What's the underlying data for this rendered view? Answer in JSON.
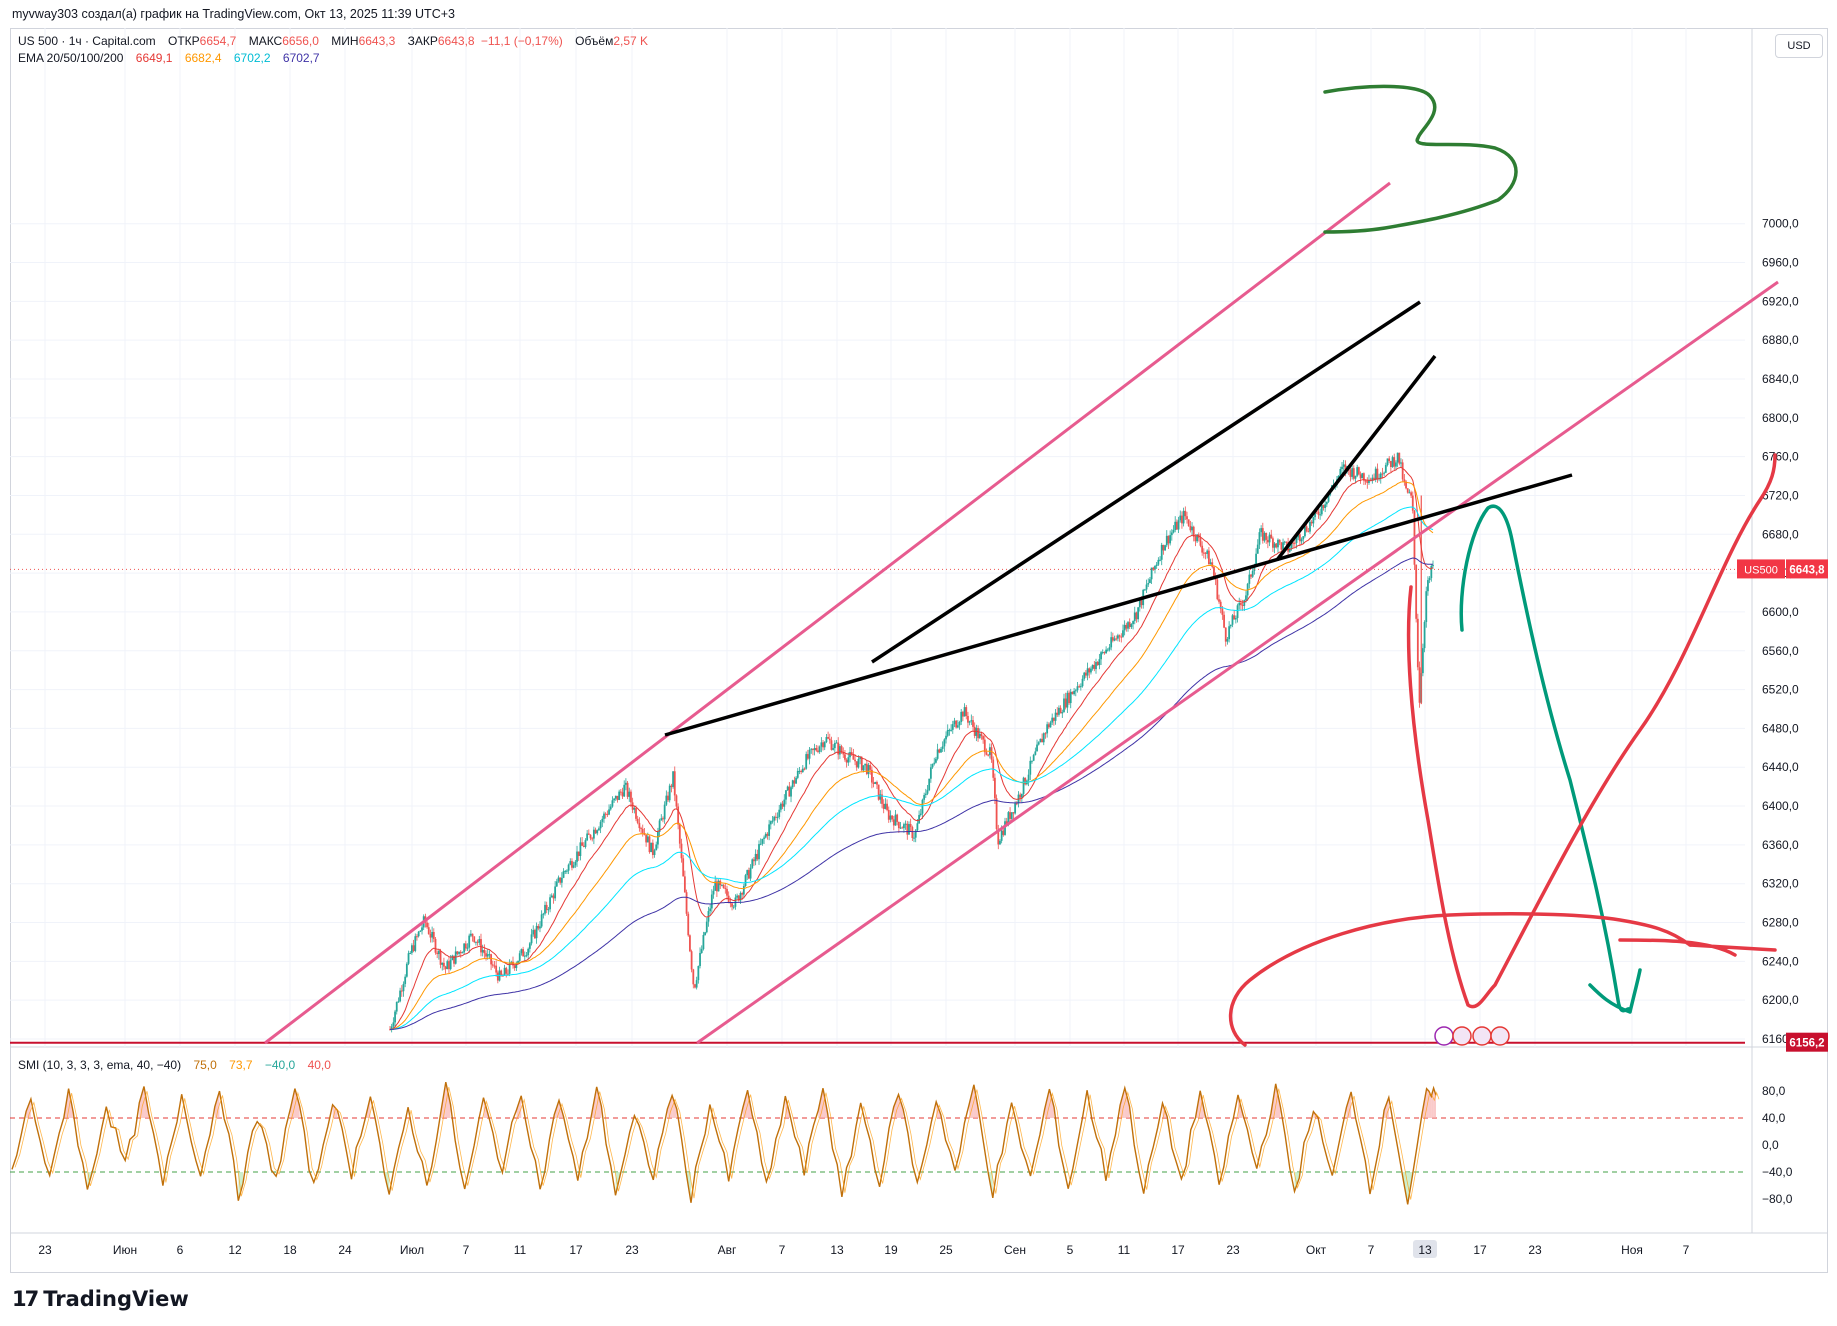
{
  "header": {
    "published_by": "myvway303 создал(а) график на TradingView.com, Окт 13, 2025 11:39 UTC+3"
  },
  "legend": {
    "symbol": "US 500 · 1ч · Capital.com",
    "open_label": "ОТКР",
    "open_value": "6654,7",
    "high_label": "МАКС",
    "high_value": "6656,0",
    "low_label": "МИН",
    "low_value": "6643,3",
    "close_label": "ЗАКР",
    "close_value": "6643,8",
    "change": "−11,1 (−0,17%)",
    "volume_label": "Объём",
    "volume_value": "2,57 K",
    "ema_label": "EMA 20/50/100/200",
    "ema_values": [
      "6649,1",
      "6682,4",
      "6702,2",
      "6702,7"
    ]
  },
  "currency": "USD",
  "price_axis": {
    "ticks": [
      "7000,0",
      "6960,0",
      "6920,0",
      "6880,0",
      "6840,0",
      "6800,0",
      "6760,0",
      "6720,0",
      "6680,0",
      "6640,0",
      "6600,0",
      "6560,0",
      "6520,0",
      "6480,0",
      "6440,0",
      "6400,0",
      "6360,0",
      "6320,0",
      "6280,0",
      "6240,0",
      "6200,0",
      "6160,0"
    ],
    "last_price_label": "US500",
    "last_price": "6643,8",
    "level_price": "6156,2"
  },
  "smi": {
    "label": "SMI (10, 3, 3, 3, ema, 40, −40)",
    "values": [
      "75,0",
      "73,7",
      "−40,0",
      "40,0"
    ],
    "ticks": [
      "80,0",
      "40,0",
      "0,0",
      "−40,0",
      "−80,0"
    ],
    "upper": 40,
    "lower": -40
  },
  "time_axis": {
    "labels": [
      "23",
      "Июн",
      "6",
      "12",
      "18",
      "24",
      "Июл",
      "7",
      "11",
      "17",
      "23",
      "Авг",
      "7",
      "13",
      "19",
      "25",
      "Сен",
      "5",
      "11",
      "17",
      "23",
      "Окт",
      "7",
      "13",
      "17",
      "23",
      "Ноя",
      "7"
    ],
    "highlighted": "13"
  },
  "colors": {
    "up": "#26a69a",
    "down": "#ef5350",
    "ema20": "#e53935",
    "ema50": "#ff9800",
    "ema100": "#00e5ff",
    "ema200": "#3f33a6",
    "channel": "#e75b8f",
    "wedge": "#000000",
    "drawing_green": "#2e7d32",
    "drawing_teal": "#009a7a",
    "drawing_red": "#e53945",
    "level_line": "#c8102e",
    "smi_line": "#c0700a"
  },
  "chart_data": {
    "type": "candlestick",
    "symbol": "US 500",
    "timeframe": "1ч",
    "ylim": [
      6156,
      7012
    ],
    "last_price": 6643.8,
    "horizontal_level": 6156.2,
    "price_path": [
      [
        0,
        6170
      ],
      [
        3,
        6250
      ],
      [
        5,
        6282
      ],
      [
        8,
        6232
      ],
      [
        12,
        6268
      ],
      [
        16,
        6222
      ],
      [
        20,
        6255
      ],
      [
        25,
        6330
      ],
      [
        30,
        6380
      ],
      [
        34,
        6420
      ],
      [
        38,
        6352
      ],
      [
        41,
        6430
      ],
      [
        44,
        6212
      ],
      [
        47,
        6320
      ],
      [
        50,
        6300
      ],
      [
        55,
        6380
      ],
      [
        60,
        6445
      ],
      [
        63,
        6470
      ],
      [
        66,
        6452
      ],
      [
        69,
        6440
      ],
      [
        72,
        6392
      ],
      [
        76,
        6370
      ],
      [
        79,
        6455
      ],
      [
        83,
        6498
      ],
      [
        87,
        6452
      ],
      [
        88,
        6365
      ],
      [
        91,
        6410
      ],
      [
        95,
        6480
      ],
      [
        99,
        6520
      ],
      [
        103,
        6555
      ],
      [
        108,
        6598
      ],
      [
        112,
        6670
      ],
      [
        115,
        6700
      ],
      [
        119,
        6648
      ],
      [
        121,
        6575
      ],
      [
        124,
        6620
      ],
      [
        126,
        6680
      ],
      [
        130,
        6665
      ],
      [
        134,
        6698
      ],
      [
        138,
        6748
      ],
      [
        142,
        6738
      ],
      [
        146,
        6760
      ],
      [
        147,
        6725
      ],
      [
        148,
        6715
      ],
      [
        149,
        6505
      ],
      [
        150,
        6620
      ],
      [
        151,
        6648
      ]
    ],
    "smi_path": [
      [
        0,
        -40
      ],
      [
        2,
        70
      ],
      [
        4,
        -55
      ],
      [
        6,
        85
      ],
      [
        8,
        -70
      ],
      [
        10,
        60
      ],
      [
        12,
        -30
      ],
      [
        14,
        80
      ],
      [
        16,
        -60
      ],
      [
        18,
        75
      ],
      [
        20,
        -45
      ],
      [
        22,
        90
      ],
      [
        24,
        -75
      ],
      [
        26,
        40
      ],
      [
        28,
        -50
      ],
      [
        30,
        85
      ],
      [
        32,
        -65
      ],
      [
        34,
        70
      ],
      [
        36,
        -40
      ],
      [
        38,
        80
      ],
      [
        40,
        -80
      ],
      [
        42,
        55
      ],
      [
        44,
        -60
      ],
      [
        46,
        90
      ],
      [
        48,
        -70
      ],
      [
        50,
        65
      ],
      [
        52,
        -35
      ],
      [
        54,
        80
      ],
      [
        56,
        -65
      ],
      [
        58,
        72
      ],
      [
        60,
        -55
      ],
      [
        62,
        88
      ],
      [
        64,
        -70
      ],
      [
        66,
        40
      ],
      [
        68,
        -45
      ],
      [
        70,
        82
      ],
      [
        72,
        -75
      ],
      [
        74,
        60
      ],
      [
        76,
        -50
      ],
      [
        78,
        85
      ],
      [
        80,
        -65
      ],
      [
        82,
        70
      ],
      [
        84,
        -40
      ],
      [
        86,
        88
      ],
      [
        88,
        -80
      ],
      [
        90,
        62
      ],
      [
        92,
        -55
      ],
      [
        94,
        84
      ],
      [
        96,
        -60
      ],
      [
        98,
        70
      ],
      [
        100,
        -40
      ],
      [
        102,
        88
      ],
      [
        104,
        -70
      ],
      [
        106,
        55
      ],
      [
        108,
        -50
      ],
      [
        110,
        82
      ],
      [
        112,
        -65
      ],
      [
        114,
        75
      ],
      [
        116,
        -45
      ],
      [
        118,
        90
      ],
      [
        120,
        -72
      ],
      [
        122,
        60
      ],
      [
        124,
        -55
      ],
      [
        126,
        80
      ],
      [
        128,
        -60
      ],
      [
        130,
        72
      ],
      [
        132,
        -35
      ],
      [
        134,
        86
      ],
      [
        136,
        -70
      ],
      [
        138,
        58
      ],
      [
        140,
        -50
      ],
      [
        142,
        84
      ],
      [
        144,
        -62
      ],
      [
        146,
        76
      ],
      [
        148,
        -85
      ],
      [
        150,
        75
      ],
      [
        151,
        73.7
      ]
    ],
    "x_range": [
      0,
      151
    ]
  }
}
